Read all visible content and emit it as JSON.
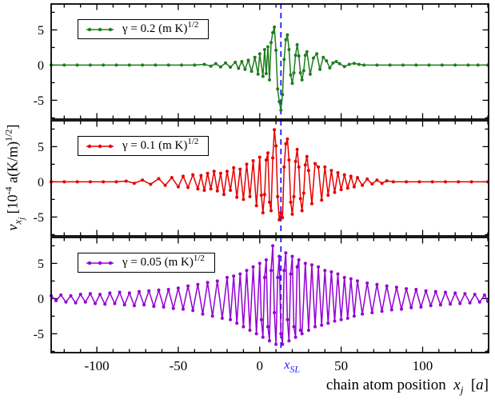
{
  "chart_data": {
    "type": "line",
    "title": "",
    "x_range": [
      -128.5,
      141
    ],
    "y_range": [
      -7.8,
      8.8
    ],
    "x_ticks": [
      -100,
      -50,
      0,
      50,
      100
    ],
    "x_minor_step": 10,
    "y_ticks": [
      5,
      0,
      -5
    ],
    "y_minor_ticks": [
      -7.5,
      -2.5,
      2.5,
      7.5
    ],
    "grid": false,
    "legend_position": "upper-left-inside",
    "marker_line": {
      "x": 13,
      "color": "#1c1cff",
      "label": "x",
      "label_sub": "SL"
    },
    "ylabel": {
      "v": "v",
      "sub_main": "x",
      "sub_sub": "j",
      "mid": " [10",
      "sup1": "-4",
      "mid2": " a(K/m)",
      "sup2": "1/2",
      "end": "]"
    },
    "xlabel": {
      "text": "chain atom position",
      "var": "x",
      "sub": "j",
      "open": "[",
      "unit": "a",
      "close": "]"
    },
    "series": [
      {
        "name": "gamma-0.2",
        "legend_main": "γ = 0.2 (m K)",
        "legend_sup": "1/2",
        "color": "#1e7d1e",
        "points": [
          [
            -128,
            0
          ],
          [
            -120,
            0
          ],
          [
            -112,
            0
          ],
          [
            -104,
            0
          ],
          [
            -96,
            0
          ],
          [
            -88,
            0
          ],
          [
            -80,
            0
          ],
          [
            -72,
            0
          ],
          [
            -64,
            0
          ],
          [
            -56,
            0
          ],
          [
            -48,
            0
          ],
          [
            -40,
            0
          ],
          [
            -34,
            0.1
          ],
          [
            -30,
            -0.15
          ],
          [
            -27,
            0.2
          ],
          [
            -24,
            -0.25
          ],
          [
            -21,
            0.3
          ],
          [
            -18,
            -0.3
          ],
          [
            -15,
            0.4
          ],
          [
            -13,
            -0.45
          ],
          [
            -11,
            0.5
          ],
          [
            -9,
            -0.6
          ],
          [
            -7,
            0.7
          ],
          [
            -5,
            -0.9
          ],
          [
            -3,
            1.1
          ],
          [
            -1,
            -1.3
          ],
          [
            0,
            1.6
          ],
          [
            2,
            -1.6
          ],
          [
            3,
            2.2
          ],
          [
            4,
            -1.2
          ],
          [
            5,
            2.6
          ],
          [
            6,
            -2.1
          ],
          [
            7,
            3.2
          ],
          [
            8,
            4.6
          ],
          [
            9,
            5.4
          ],
          [
            10,
            2.1
          ],
          [
            11,
            -3.4
          ],
          [
            12,
            -5.2
          ],
          [
            13,
            -6.4
          ],
          [
            14,
            -4.2
          ],
          [
            15,
            0.8
          ],
          [
            16,
            3.6
          ],
          [
            17,
            4.3
          ],
          [
            18,
            2.2
          ],
          [
            19,
            -1.4
          ],
          [
            20,
            -2.6
          ],
          [
            21,
            -1.1
          ],
          [
            22,
            1.4
          ],
          [
            23,
            2.9
          ],
          [
            24,
            1.3
          ],
          [
            25,
            -1.1
          ],
          [
            26,
            -2.1
          ],
          [
            27,
            -0.8
          ],
          [
            28,
            1.4
          ],
          [
            29,
            1.9
          ],
          [
            31,
            -1.3
          ],
          [
            33,
            1.0
          ],
          [
            35,
            1.6
          ],
          [
            37,
            -0.6
          ],
          [
            39,
            1.1
          ],
          [
            41,
            0.6
          ],
          [
            43,
            -0.4
          ],
          [
            45,
            0.3
          ],
          [
            47,
            0.5
          ],
          [
            49,
            0.2
          ],
          [
            52,
            -0.2
          ],
          [
            55,
            0.1
          ],
          [
            58,
            0.25
          ],
          [
            61,
            0.1
          ],
          [
            64,
            0
          ],
          [
            72,
            0
          ],
          [
            80,
            0
          ],
          [
            88,
            0
          ],
          [
            96,
            0
          ],
          [
            104,
            0
          ],
          [
            112,
            0
          ],
          [
            120,
            0
          ],
          [
            128,
            0
          ],
          [
            134,
            0
          ],
          [
            140,
            0
          ]
        ]
      },
      {
        "name": "gamma-0.1",
        "legend_main": "γ = 0.1 (m K)",
        "legend_sup": "1/2",
        "color": "#e60000",
        "points": [
          [
            -128,
            0
          ],
          [
            -120,
            0
          ],
          [
            -112,
            0
          ],
          [
            -104,
            0
          ],
          [
            -96,
            0
          ],
          [
            -88,
            0
          ],
          [
            -82,
            0.1
          ],
          [
            -77,
            -0.2
          ],
          [
            -72,
            0.25
          ],
          [
            -67,
            -0.35
          ],
          [
            -62,
            0.45
          ],
          [
            -58,
            -0.5
          ],
          [
            -54,
            0.6
          ],
          [
            -50,
            -0.7
          ],
          [
            -47,
            0.8
          ],
          [
            -44,
            -0.8
          ],
          [
            -41,
            1.0
          ],
          [
            -38,
            -1.0
          ],
          [
            -36,
            0.9
          ],
          [
            -34,
            -1.2
          ],
          [
            -32,
            1.2
          ],
          [
            -30,
            -1.0
          ],
          [
            -28,
            1.5
          ],
          [
            -26,
            -1.3
          ],
          [
            -24,
            1.2
          ],
          [
            -22,
            -1.8
          ],
          [
            -20,
            1.5
          ],
          [
            -18,
            -1.2
          ],
          [
            -16,
            2.0
          ],
          [
            -14,
            -2.2
          ],
          [
            -12,
            1.8
          ],
          [
            -10,
            -2.5
          ],
          [
            -8,
            2.5
          ],
          [
            -6,
            -2.1
          ],
          [
            -4,
            3.0
          ],
          [
            -2,
            -3.4
          ],
          [
            0,
            3.5
          ],
          [
            1,
            -1.9
          ],
          [
            2,
            -4.4
          ],
          [
            3,
            -1.8
          ],
          [
            4,
            3.1
          ],
          [
            5,
            4.1
          ],
          [
            6,
            -2.9
          ],
          [
            7,
            -4.1
          ],
          [
            8,
            3.4
          ],
          [
            9,
            7.4
          ],
          [
            10,
            5.1
          ],
          [
            11,
            -2.1
          ],
          [
            12,
            -5.4
          ],
          [
            13,
            -4.4
          ],
          [
            14,
            -5.1
          ],
          [
            15,
            2.1
          ],
          [
            16,
            5.4
          ],
          [
            17,
            6.1
          ],
          [
            18,
            3.1
          ],
          [
            19,
            -2.9
          ],
          [
            20,
            -4.6
          ],
          [
            21,
            -2.1
          ],
          [
            22,
            2.9
          ],
          [
            23,
            4.6
          ],
          [
            24,
            2.1
          ],
          [
            25,
            -2.4
          ],
          [
            26,
            -4.1
          ],
          [
            27,
            -1.6
          ],
          [
            28,
            2.4
          ],
          [
            29,
            3.6
          ],
          [
            30,
            1.6
          ],
          [
            32,
            -3.1
          ],
          [
            34,
            2.6
          ],
          [
            36,
            2.1
          ],
          [
            38,
            -2.6
          ],
          [
            40,
            2.1
          ],
          [
            42,
            -1.9
          ],
          [
            44,
            1.6
          ],
          [
            46,
            -1.5
          ],
          [
            48,
            1.3
          ],
          [
            50,
            -1.1
          ],
          [
            52,
            1.0
          ],
          [
            54,
            -0.9
          ],
          [
            56,
            0.8
          ],
          [
            58,
            -0.7
          ],
          [
            60,
            0.6
          ],
          [
            63,
            -0.5
          ],
          [
            66,
            0.4
          ],
          [
            69,
            -0.3
          ],
          [
            72,
            0.25
          ],
          [
            75,
            -0.2
          ],
          [
            78,
            0.15
          ],
          [
            82,
            0
          ],
          [
            90,
            0
          ],
          [
            98,
            0
          ],
          [
            106,
            0
          ],
          [
            114,
            0
          ],
          [
            122,
            0
          ],
          [
            130,
            0
          ],
          [
            140,
            0
          ]
        ]
      },
      {
        "name": "gamma-0.05",
        "legend_main": "γ = 0.05 (m K)",
        "legend_sup": "1/2",
        "color": "#9400d3",
        "points": [
          [
            -128,
            0.4
          ],
          [
            -125,
            -0.3
          ],
          [
            -122,
            0.5
          ],
          [
            -119,
            -0.5
          ],
          [
            -116,
            0.4
          ],
          [
            -113,
            -0.6
          ],
          [
            -110,
            0.6
          ],
          [
            -107,
            -0.5
          ],
          [
            -104,
            0.7
          ],
          [
            -101,
            -0.7
          ],
          [
            -98,
            0.6
          ],
          [
            -95,
            -0.8
          ],
          [
            -92,
            0.8
          ],
          [
            -89,
            -0.7
          ],
          [
            -86,
            0.9
          ],
          [
            -83,
            -0.9
          ],
          [
            -80,
            0.8
          ],
          [
            -77,
            -1.0
          ],
          [
            -74,
            1.0
          ],
          [
            -71,
            -0.9
          ],
          [
            -68,
            1.1
          ],
          [
            -65,
            -1.1
          ],
          [
            -62,
            1.2
          ],
          [
            -59,
            -1.2
          ],
          [
            -56,
            1.3
          ],
          [
            -53,
            -1.4
          ],
          [
            -50,
            1.5
          ],
          [
            -47,
            -1.5
          ],
          [
            -44,
            1.8
          ],
          [
            -41,
            -1.7
          ],
          [
            -38,
            2.0
          ],
          [
            -35,
            -2.2
          ],
          [
            -32,
            2.3
          ],
          [
            -29,
            -2.5
          ],
          [
            -26,
            2.5
          ],
          [
            -23,
            -2.8
          ],
          [
            -20,
            3.0
          ],
          [
            -18,
            -3.0
          ],
          [
            -16,
            3.2
          ],
          [
            -14,
            -3.5
          ],
          [
            -12,
            3.5
          ],
          [
            -10,
            -4.0
          ],
          [
            -8,
            4.0
          ],
          [
            -6,
            -4.5
          ],
          [
            -4,
            4.5
          ],
          [
            -2,
            -5.0
          ],
          [
            0,
            5.0
          ],
          [
            1,
            -3.0
          ],
          [
            2,
            -5.5
          ],
          [
            3,
            3.0
          ],
          [
            4,
            5.5
          ],
          [
            5,
            -4.0
          ],
          [
            6,
            -6.0
          ],
          [
            7,
            4.0
          ],
          [
            8,
            7.5
          ],
          [
            9,
            -2.0
          ],
          [
            10,
            -6.5
          ],
          [
            11,
            3.0
          ],
          [
            12,
            6.0
          ],
          [
            13,
            -5.0
          ],
          [
            14,
            -6.5
          ],
          [
            15,
            4.0
          ],
          [
            16,
            6.5
          ],
          [
            17,
            -3.0
          ],
          [
            18,
            -6.0
          ],
          [
            19,
            3.5
          ],
          [
            20,
            6.0
          ],
          [
            21,
            -4.0
          ],
          [
            22,
            -5.5
          ],
          [
            23,
            4.5
          ],
          [
            24,
            5.5
          ],
          [
            25,
            -4.5
          ],
          [
            26,
            -5.0
          ],
          [
            28,
            5.0
          ],
          [
            30,
            -4.5
          ],
          [
            32,
            4.8
          ],
          [
            34,
            -4.0
          ],
          [
            36,
            4.5
          ],
          [
            38,
            -3.8
          ],
          [
            40,
            4.0
          ],
          [
            42,
            -3.5
          ],
          [
            44,
            3.8
          ],
          [
            46,
            -3.2
          ],
          [
            48,
            3.5
          ],
          [
            50,
            -3.0
          ],
          [
            52,
            3.0
          ],
          [
            54,
            -2.8
          ],
          [
            56,
            2.8
          ],
          [
            58,
            -2.5
          ],
          [
            60,
            2.5
          ],
          [
            63,
            -2.2
          ],
          [
            66,
            2.2
          ],
          [
            69,
            -2.0
          ],
          [
            72,
            2.0
          ],
          [
            75,
            -1.8
          ],
          [
            78,
            1.8
          ],
          [
            81,
            -1.6
          ],
          [
            84,
            1.6
          ],
          [
            87,
            -1.5
          ],
          [
            90,
            1.4
          ],
          [
            93,
            -1.3
          ],
          [
            96,
            1.3
          ],
          [
            99,
            -1.2
          ],
          [
            102,
            1.1
          ],
          [
            105,
            -1.0
          ],
          [
            108,
            1.0
          ],
          [
            111,
            -0.9
          ],
          [
            114,
            0.9
          ],
          [
            117,
            -0.8
          ],
          [
            120,
            0.8
          ],
          [
            123,
            -0.7
          ],
          [
            126,
            0.7
          ],
          [
            129,
            -0.6
          ],
          [
            132,
            0.6
          ],
          [
            135,
            -0.5
          ],
          [
            138,
            0.5
          ],
          [
            140,
            -0.4
          ]
        ]
      }
    ]
  }
}
